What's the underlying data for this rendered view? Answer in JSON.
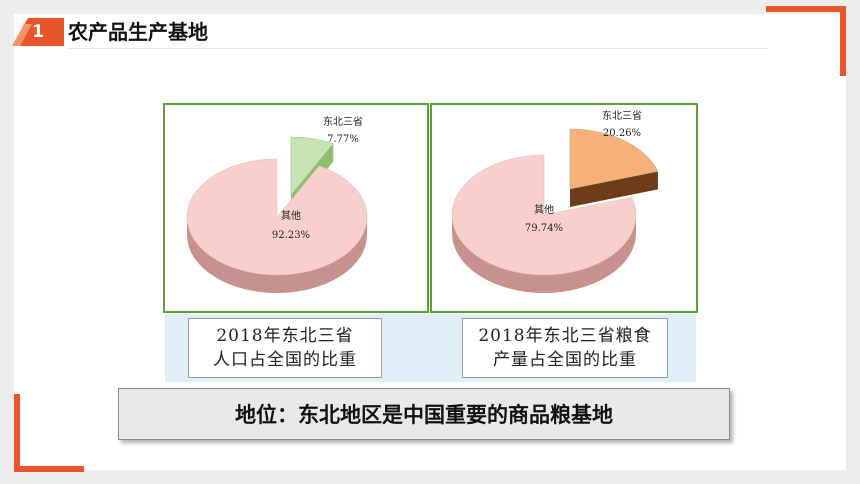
{
  "header": {
    "number": "1",
    "title": "农产品生产基地"
  },
  "chart_data": [
    {
      "type": "pie",
      "slices": [
        {
          "label": "东北三省",
          "value": 7.77,
          "value_text": "7.77%",
          "color": "#c6e3b4",
          "side_color": "#8cbf72"
        },
        {
          "label": "其他",
          "value": 92.23,
          "value_text": "92.23%",
          "color": "#f8cfcb",
          "side_color": "#c7928d"
        }
      ],
      "caption_lines": [
        "2018年东北三省",
        "人口占全国的比重"
      ]
    },
    {
      "type": "pie",
      "slices": [
        {
          "label": "东北三省",
          "value": 20.26,
          "value_text": "20.26%",
          "color": "#f7b07a",
          "side_color": "#6e3d17"
        },
        {
          "label": "其他",
          "value": 79.74,
          "value_text": "79.74%",
          "color": "#f8cfcb",
          "side_color": "#c7928d"
        }
      ],
      "caption_lines": [
        "2018年东北三省粮食",
        "产量占全国的比重"
      ]
    }
  ],
  "conclusion": "地位：东北地区是中国重要的商品粮基地",
  "colors": {
    "accent": "#e8552a",
    "panel_border": "#5a9e3a",
    "caption_strip": "#dfeef7"
  }
}
